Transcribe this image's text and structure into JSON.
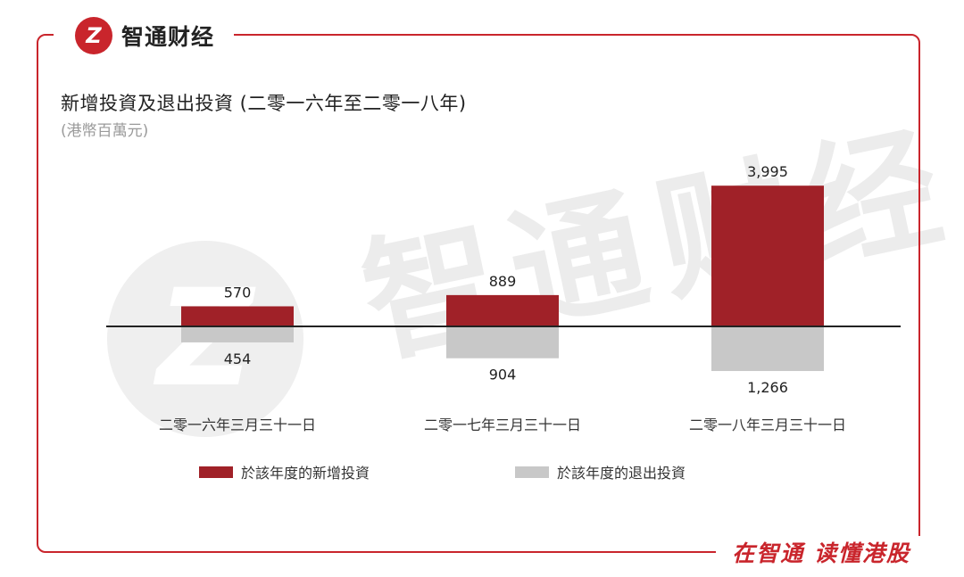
{
  "brand": {
    "logo_glyph": "Z",
    "name": "智通财经",
    "slogan": "在智通  读懂港股",
    "watermark": "智通财经"
  },
  "colors": {
    "accent": "#c9252c",
    "new_bar": "#a02128",
    "exit_bar": "#c8c8c8",
    "axis": "#222222"
  },
  "chart_data": {
    "type": "bar",
    "title": "新增投資及退出投資 (二零一六年至二零一八年)",
    "subtitle": "(港幣百萬元)",
    "categories": [
      "二零一六年三月三十一日",
      "二零一七年三月三十一日",
      "二零一八年三月三十一日"
    ],
    "series": [
      {
        "name": "於該年度的新增投資",
        "direction": "up",
        "values": [
          570,
          889,
          3995
        ],
        "labels": [
          "570",
          "889",
          "3,995"
        ]
      },
      {
        "name": "於該年度的退出投資",
        "direction": "down",
        "values": [
          454,
          904,
          1266
        ],
        "labels": [
          "454",
          "904",
          "1,266"
        ]
      }
    ],
    "ylim": [
      -1400,
      4000
    ],
    "legend_position": "bottom"
  }
}
